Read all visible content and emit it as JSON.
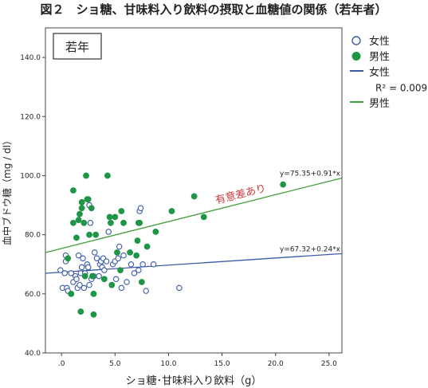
{
  "figure_title": "図２　ショ糖、甘味料入り飲料の摂取と血糖値の関係（若年者）",
  "panel_label": "若年",
  "significance_note": "有意差あり",
  "chart_data": {
    "type": "scatter",
    "xlabel": "ショ糖･甘味料入り飲料（g）",
    "ylabel": "血中ブドウ糖（mg / dl）",
    "xlim": [
      -1.5,
      26.2
    ],
    "ylim": [
      40,
      150
    ],
    "x_ticks": [
      0,
      5,
      10,
      15,
      20,
      25
    ],
    "x_tick_labels": [
      ".0",
      "5.0",
      "10.0",
      "15.0",
      "20.0",
      "25.0"
    ],
    "y_ticks": [
      40,
      60,
      80,
      100,
      120,
      140
    ],
    "y_tick_labels": [
      "40.0",
      "60.0",
      "80.0",
      "100.0",
      "120.0",
      "140.0"
    ],
    "legend_position": "right",
    "legend": [
      {
        "label": "女性",
        "kind": "marker",
        "series": "female"
      },
      {
        "label": "男性",
        "kind": "marker",
        "series": "male"
      },
      {
        "label": "女性",
        "kind": "line",
        "series": "female"
      },
      {
        "label": "R² = 0.009",
        "kind": "text"
      },
      {
        "label": "男性",
        "kind": "line",
        "series": "male"
      }
    ],
    "series": [
      {
        "name": "女性",
        "key": "female",
        "marker": "open-circle",
        "color": "#3B5BA9",
        "points": [
          [
            -0.1,
            68
          ],
          [
            0.1,
            62
          ],
          [
            0.3,
            67
          ],
          [
            0.4,
            71
          ],
          [
            0.4,
            73
          ],
          [
            0.5,
            62
          ],
          [
            0.6,
            61
          ],
          [
            0.9,
            60
          ],
          [
            0.9,
            67
          ],
          [
            1.1,
            64
          ],
          [
            1.3,
            66
          ],
          [
            1.4,
            65
          ],
          [
            1.5,
            62
          ],
          [
            1.6,
            73
          ],
          [
            1.7,
            63
          ],
          [
            1.8,
            67
          ],
          [
            1.9,
            69
          ],
          [
            2.0,
            72
          ],
          [
            2.1,
            62
          ],
          [
            2.2,
            67
          ],
          [
            2.4,
            70
          ],
          [
            2.5,
            69
          ],
          [
            2.6,
            63
          ],
          [
            2.8,
            65
          ],
          [
            2.9,
            66
          ],
          [
            3.0,
            66
          ],
          [
            3.1,
            74
          ],
          [
            3.3,
            72
          ],
          [
            3.5,
            66
          ],
          [
            3.6,
            70
          ],
          [
            3.7,
            71
          ],
          [
            3.8,
            69
          ],
          [
            3.9,
            72
          ],
          [
            4.0,
            68
          ],
          [
            4.0,
            65
          ],
          [
            4.2,
            71
          ],
          [
            4.4,
            81
          ],
          [
            4.8,
            70
          ],
          [
            5.0,
            71
          ],
          [
            5.1,
            65
          ],
          [
            5.3,
            72
          ],
          [
            5.4,
            76
          ],
          [
            5.6,
            62
          ],
          [
            5.8,
            73
          ],
          [
            6.1,
            64
          ],
          [
            6.5,
            70
          ],
          [
            6.8,
            67
          ],
          [
            7.2,
            68
          ],
          [
            7.3,
            88
          ],
          [
            7.4,
            89
          ],
          [
            7.6,
            70
          ],
          [
            7.9,
            61
          ],
          [
            8.6,
            70
          ],
          [
            11.0,
            62
          ],
          [
            2.6,
            90
          ],
          [
            2.7,
            84
          ]
        ]
      },
      {
        "name": "男性",
        "key": "male",
        "marker": "filled-circle",
        "color": "#1E9646",
        "points": [
          [
            0.6,
            72
          ],
          [
            0.9,
            60
          ],
          [
            1.1,
            95
          ],
          [
            1.1,
            84
          ],
          [
            1.4,
            79
          ],
          [
            1.6,
            85
          ],
          [
            1.7,
            87
          ],
          [
            1.8,
            54
          ],
          [
            1.9,
            89
          ],
          [
            1.9,
            91
          ],
          [
            2.1,
            84
          ],
          [
            2.2,
            66
          ],
          [
            2.3,
            100
          ],
          [
            2.4,
            92
          ],
          [
            2.5,
            92
          ],
          [
            2.6,
            80
          ],
          [
            2.8,
            89
          ],
          [
            2.9,
            66
          ],
          [
            3.0,
            53
          ],
          [
            3.0,
            60
          ],
          [
            3.2,
            80
          ],
          [
            4.0,
            65
          ],
          [
            4.3,
            100
          ],
          [
            4.5,
            86
          ],
          [
            4.6,
            84
          ],
          [
            4.7,
            63
          ],
          [
            5.0,
            86
          ],
          [
            5.2,
            74
          ],
          [
            5.5,
            68
          ],
          [
            5.6,
            88
          ],
          [
            5.8,
            84
          ],
          [
            6.4,
            74
          ],
          [
            7.0,
            73
          ],
          [
            7.1,
            78
          ],
          [
            7.2,
            84
          ],
          [
            7.3,
            84
          ],
          [
            7.5,
            64
          ],
          [
            8.0,
            76
          ],
          [
            8.8,
            81
          ],
          [
            10.3,
            88
          ],
          [
            12.4,
            93
          ],
          [
            13.3,
            86
          ],
          [
            20.7,
            97
          ]
        ]
      }
    ],
    "fit_lines": [
      {
        "series": "female",
        "label": "y=67.32+0.24*x",
        "intercept": 67.32,
        "slope": 0.24,
        "color": "#3B5BA9"
      },
      {
        "series": "male",
        "label": "y=75.35+0.91*x",
        "intercept": 75.35,
        "slope": 0.91,
        "color": "#3E9E3A"
      }
    ]
  }
}
